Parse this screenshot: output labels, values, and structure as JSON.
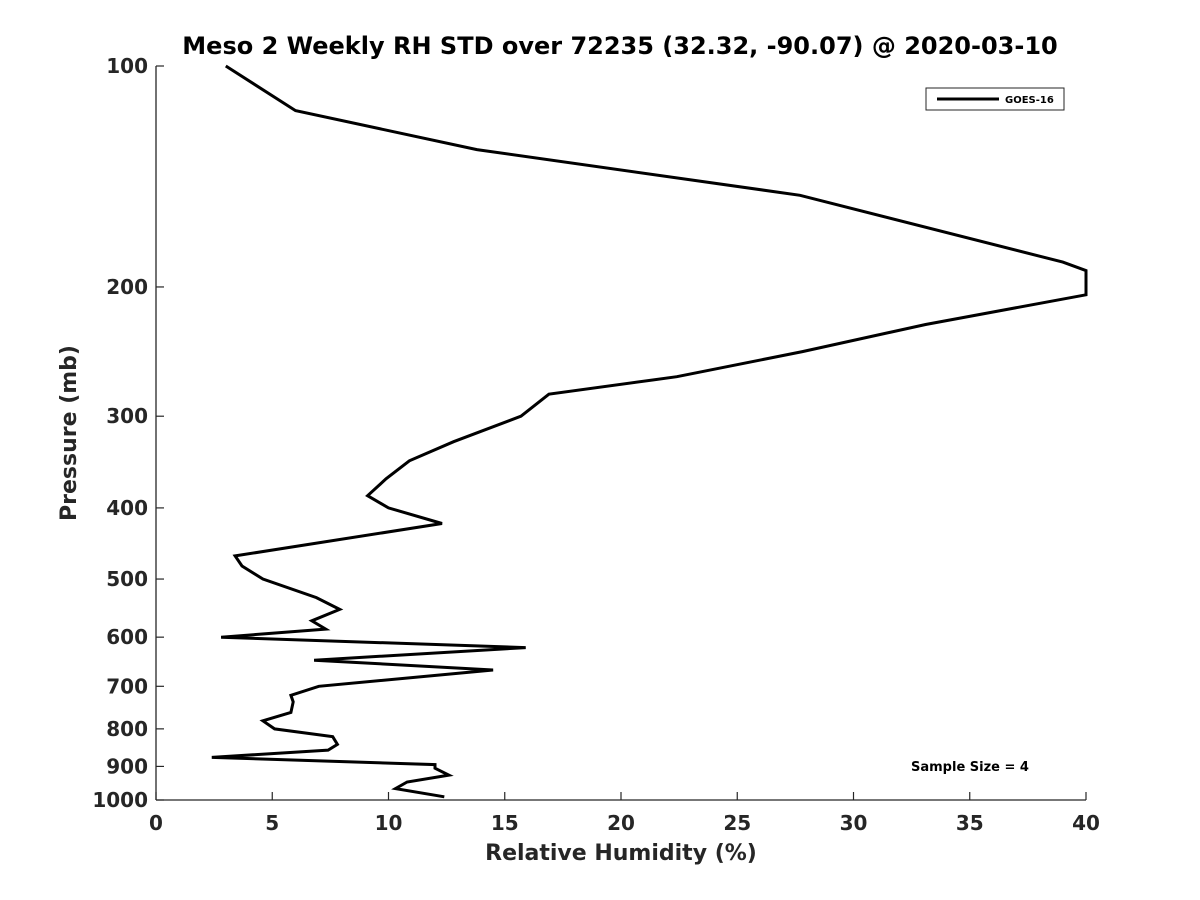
{
  "chart_data": {
    "type": "line",
    "title": "Meso 2 Weekly RH STD over 72235 (32.32, -90.07) @ 2020-03-10",
    "xlabel": "Relative Humidity (%)",
    "ylabel": "Pressure (mb)",
    "xlim": [
      0,
      40
    ],
    "ylim": [
      100,
      1000
    ],
    "yscale": "log",
    "y_reversed": true,
    "grid": false,
    "x_ticks": [
      0,
      5,
      10,
      15,
      20,
      25,
      30,
      35,
      40
    ],
    "y_ticks": [
      100,
      200,
      300,
      400,
      500,
      600,
      700,
      800,
      900,
      1000
    ],
    "legend_position": "top-right",
    "annotation": "Sample Size = 4",
    "series": [
      {
        "name": "GOES-16",
        "color": "#000000",
        "x": [
          3.0,
          6.0,
          13.8,
          27.7,
          39.0,
          40.0,
          40.0,
          33.1,
          27.8,
          22.4,
          16.9,
          15.7,
          12.8,
          10.9,
          9.9,
          9.1,
          10.0,
          12.3,
          3.4,
          3.7,
          4.6,
          6.9,
          7.9,
          6.7,
          7.3,
          2.8,
          15.9,
          6.8,
          14.5,
          7.0,
          5.8,
          5.9,
          5.8,
          4.6,
          5.1,
          7.6,
          7.8,
          7.4,
          2.4,
          12.0,
          12.0,
          12.6,
          10.8,
          10.3,
          12.4
        ],
        "y": [
          100,
          115,
          130,
          150,
          185,
          190,
          205,
          225,
          245,
          265,
          280,
          300,
          325,
          345,
          365,
          385,
          400,
          420,
          465,
          480,
          500,
          530,
          550,
          570,
          585,
          600,
          620,
          645,
          665,
          700,
          720,
          735,
          760,
          780,
          800,
          820,
          840,
          855,
          875,
          895,
          905,
          925,
          945,
          965,
          990
        ]
      }
    ]
  }
}
